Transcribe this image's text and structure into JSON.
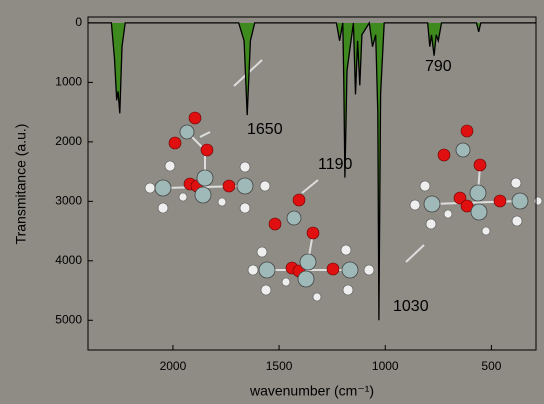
{
  "chart_data": {
    "type": "line",
    "xlabel": "wavenumber (cm⁻¹)",
    "ylabel": "Transmitance (a.u.)",
    "x": [
      2400,
      2290,
      2275,
      2265,
      2258,
      2250,
      2240,
      2225,
      1690,
      1665,
      1650,
      1635,
      1615,
      1230,
      1215,
      1200,
      1195,
      1190,
      1180,
      1150,
      1140,
      1130,
      1120,
      1110,
      1075,
      1060,
      1045,
      1035,
      1030,
      1022,
      1005,
      800,
      790,
      782,
      770,
      760,
      750,
      735,
      570,
      560,
      550,
      290
    ],
    "values": [
      0,
      0,
      600,
      1300,
      1150,
      1520,
      400,
      0,
      0,
      300,
      1550,
      300,
      0,
      0,
      300,
      0,
      1000,
      2600,
      800,
      0,
      1200,
      300,
      1050,
      200,
      0,
      400,
      200,
      1500,
      5000,
      1200,
      0,
      0,
      400,
      200,
      550,
      200,
      300,
      0,
      0,
      150,
      0,
      0
    ],
    "color": "#000000",
    "fill_color": "#3f8a1e",
    "xlim": [
      2400,
      290
    ],
    "ylim": [
      -100,
      5500
    ],
    "xticks": [
      2000,
      1500,
      1000,
      500
    ],
    "yticks": [
      0,
      1000,
      2000,
      3000,
      4000,
      5000
    ],
    "annotations": [
      "1650",
      "1190",
      "1030",
      "790"
    ]
  }
}
